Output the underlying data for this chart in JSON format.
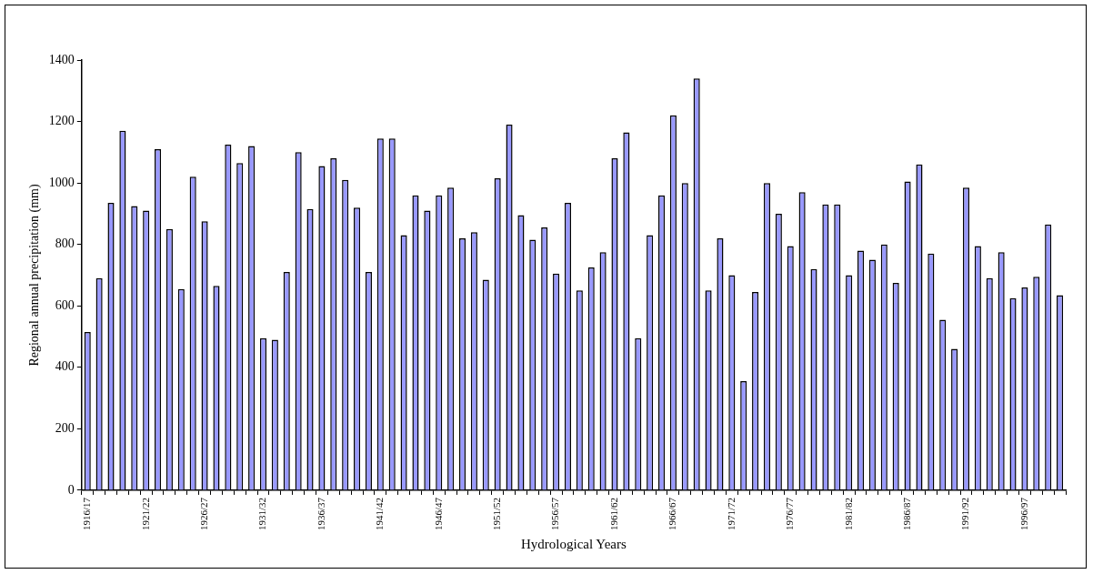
{
  "chart_data": {
    "type": "bar",
    "xlabel": "Hydrological Years",
    "ylabel": "Regional annual precipitation (mm)",
    "categories": [
      "1916/17",
      null,
      null,
      null,
      null,
      "1921/22",
      null,
      null,
      null,
      null,
      "1926/27",
      null,
      null,
      null,
      null,
      "1931/32",
      null,
      null,
      null,
      null,
      "1936/37",
      null,
      null,
      null,
      null,
      "1941/42",
      null,
      null,
      null,
      null,
      "1946/47",
      null,
      null,
      null,
      null,
      "1951/52",
      null,
      null,
      null,
      null,
      "1956/57",
      null,
      null,
      null,
      null,
      "1961/62",
      null,
      null,
      null,
      null,
      "1966/67",
      null,
      null,
      null,
      null,
      "1971/72",
      null,
      null,
      null,
      null,
      "1976/77",
      null,
      null,
      null,
      null,
      "1981/82",
      null,
      null,
      null,
      null,
      "1986/87",
      null,
      null,
      null,
      null,
      "1991/92",
      null,
      null,
      null,
      null,
      "1996/97",
      null,
      null,
      null
    ],
    "values": [
      515,
      690,
      935,
      1170,
      925,
      910,
      1110,
      850,
      655,
      1020,
      875,
      665,
      1125,
      1065,
      1120,
      495,
      490,
      710,
      1100,
      915,
      1055,
      1080,
      1010,
      920,
      710,
      1145,
      1145,
      830,
      960,
      910,
      960,
      985,
      820,
      840,
      685,
      1015,
      1190,
      895,
      815,
      855,
      705,
      935,
      650,
      725,
      775,
      1080,
      1165,
      495,
      830,
      960,
      1220,
      1000,
      1340,
      650,
      820,
      700,
      355,
      645,
      1000,
      900,
      795,
      970,
      720,
      930,
      930,
      700,
      780,
      750,
      800,
      675,
      1005,
      1060,
      770,
      555,
      460,
      985,
      795,
      690,
      775,
      625,
      660,
      695,
      865,
      635
    ],
    "color": "#9999ff",
    "ylim": [
      0,
      1400
    ],
    "yticks": [
      0,
      200,
      400,
      600,
      800,
      1000,
      1200,
      1400
    ],
    "grid": false,
    "legend": false
  }
}
